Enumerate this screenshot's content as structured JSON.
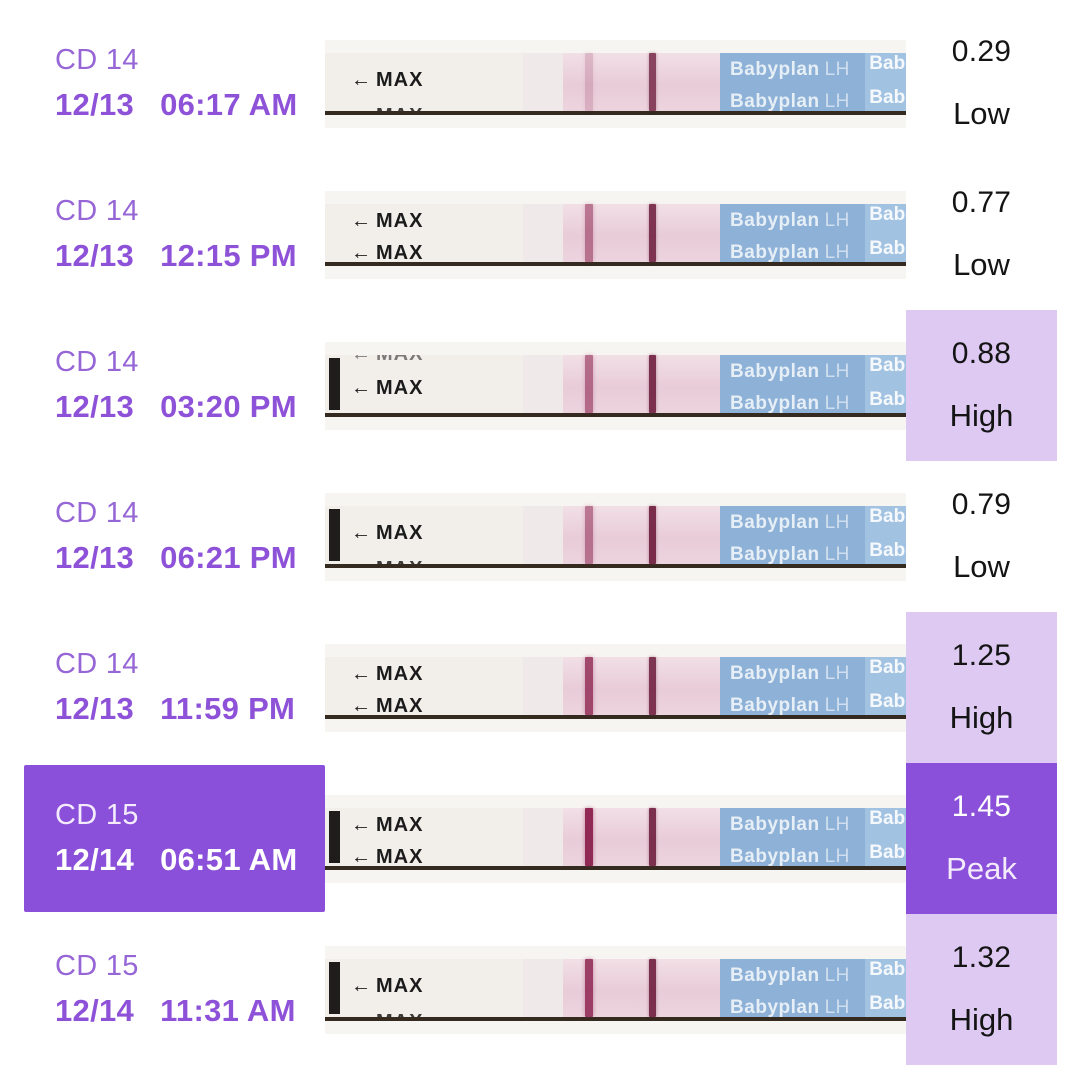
{
  "colors": {
    "accent_purple": "#8b50da",
    "light_purple": "#ddc9f2",
    "label_purple": "#8e52d8",
    "value_text": "#141414",
    "strip_blue": "#8db1d7",
    "membrane_pink": "#e8ccd8"
  },
  "strip_art": {
    "max_arrow": "←",
    "max_label": "MAX",
    "brand": "Babyplan",
    "assay": "LH",
    "brand_partial": "Bab"
  },
  "rows": [
    {
      "cycle_day": "CD 14",
      "date": "12/13",
      "time": "06:17 AM",
      "value": "0.29",
      "status": "Low",
      "highlight": "none",
      "strip": {
        "black_cap": false,
        "max_variant": "bottom",
        "test_line_opacity": 0.2,
        "control_line_opacity": 0.8
      }
    },
    {
      "cycle_day": "CD 14",
      "date": "12/13",
      "time": "12:15 PM",
      "value": "0.77",
      "status": "Low",
      "highlight": "none",
      "strip": {
        "black_cap": false,
        "max_variant": "full",
        "test_line_opacity": 0.55,
        "control_line_opacity": 0.88
      }
    },
    {
      "cycle_day": "CD 14",
      "date": "12/13",
      "time": "03:20 PM",
      "value": "0.88",
      "status": "High",
      "highlight": "value",
      "strip": {
        "black_cap": true,
        "max_variant": "top",
        "test_line_opacity": 0.6,
        "control_line_opacity": 0.9
      }
    },
    {
      "cycle_day": "CD 14",
      "date": "12/13",
      "time": "06:21 PM",
      "value": "0.79",
      "status": "Low",
      "highlight": "none",
      "strip": {
        "black_cap": true,
        "max_variant": "bottom",
        "test_line_opacity": 0.55,
        "control_line_opacity": 0.92
      }
    },
    {
      "cycle_day": "CD 14",
      "date": "12/13",
      "time": "11:59 PM",
      "value": "1.25",
      "status": "High",
      "highlight": "value",
      "strip": {
        "black_cap": false,
        "max_variant": "full",
        "test_line_opacity": 0.8,
        "control_line_opacity": 0.88
      }
    },
    {
      "cycle_day": "CD 15",
      "date": "12/14",
      "time": "06:51 AM",
      "value": "1.45",
      "status": "Peak",
      "highlight": "row",
      "strip": {
        "black_cap": true,
        "max_variant": "full",
        "test_line_opacity": 0.97,
        "control_line_opacity": 0.9
      }
    },
    {
      "cycle_day": "CD 15",
      "date": "12/14",
      "time": "11:31 AM",
      "value": "1.32",
      "status": "High",
      "highlight": "value",
      "strip": {
        "black_cap": true,
        "max_variant": "bottom",
        "test_line_opacity": 0.85,
        "control_line_opacity": 0.9
      }
    }
  ]
}
